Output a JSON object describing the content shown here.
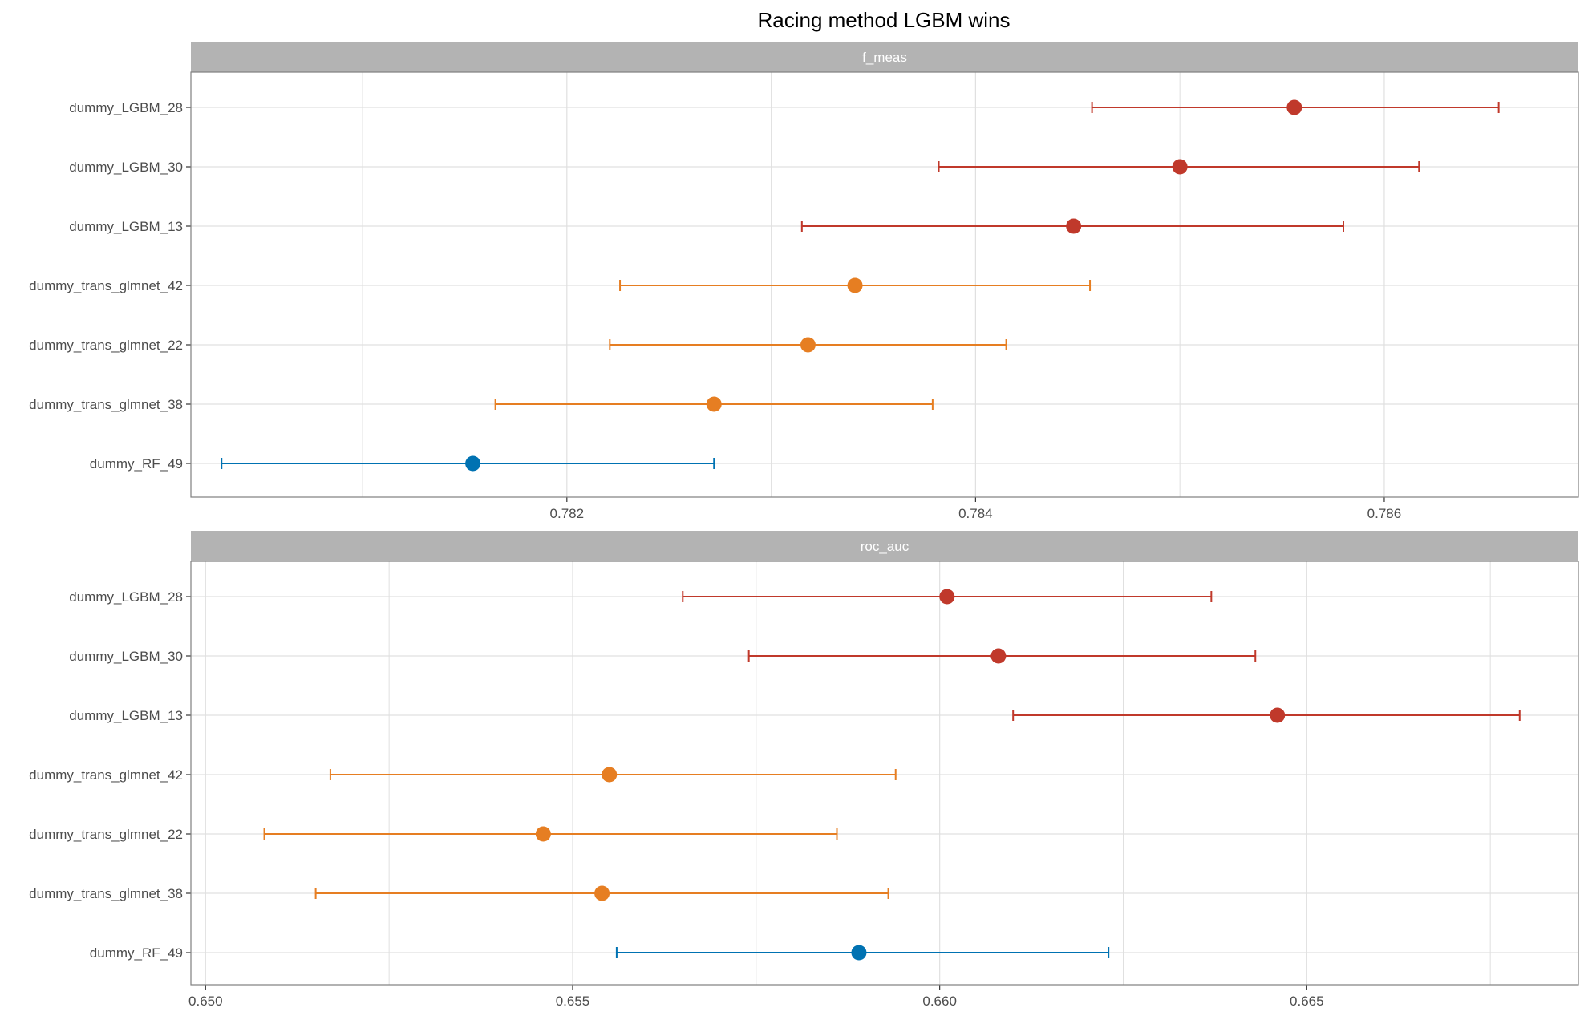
{
  "title": "Racing method LGBM wins",
  "colors": {
    "LGBM": "#C0392B",
    "glmnet": "#E67E22",
    "RF": "#0072B2",
    "strip_bg": "#B3B3B3",
    "strip_text": "#FFFFFF",
    "grid": "#E0E0E0",
    "panel_border": "#7F7F7F",
    "axis_text": "#4D4D4D"
  },
  "chart_data": [
    {
      "type": "scatter",
      "panel": "f_meas",
      "categories": [
        "dummy_LGBM_28",
        "dummy_LGBM_30",
        "dummy_LGBM_13",
        "dummy_trans_glmnet_42",
        "dummy_trans_glmnet_22",
        "dummy_trans_glmnet_38",
        "dummy_RF_49"
      ],
      "groups": [
        "LGBM",
        "LGBM",
        "LGBM",
        "glmnet",
        "glmnet",
        "glmnet",
        "RF"
      ],
      "mean": [
        0.78556,
        0.785,
        0.78448,
        0.78341,
        0.78318,
        0.78272,
        0.78154
      ],
      "lower": [
        0.78457,
        0.78382,
        0.78315,
        0.78226,
        0.78221,
        0.78165,
        0.78031
      ],
      "upper": [
        0.78656,
        0.78617,
        0.7858,
        0.78456,
        0.78415,
        0.78379,
        0.78272
      ],
      "xlim": [
        0.78016,
        0.78695
      ],
      "xticks": [
        0.782,
        0.784,
        0.786
      ],
      "xtick_labels": [
        "0.782",
        "0.784",
        "0.786"
      ],
      "grid": true
    },
    {
      "type": "scatter",
      "panel": "roc_auc",
      "categories": [
        "dummy_LGBM_28",
        "dummy_LGBM_30",
        "dummy_LGBM_13",
        "dummy_trans_glmnet_42",
        "dummy_trans_glmnet_22",
        "dummy_trans_glmnet_38",
        "dummy_RF_49"
      ],
      "groups": [
        "LGBM",
        "LGBM",
        "LGBM",
        "glmnet",
        "glmnet",
        "glmnet",
        "RF"
      ],
      "mean": [
        0.6601,
        0.6608,
        0.6646,
        0.6555,
        0.6546,
        0.6554,
        0.6589
      ],
      "lower": [
        0.6565,
        0.6574,
        0.661,
        0.6517,
        0.6508,
        0.6515,
        0.6556
      ],
      "upper": [
        0.6637,
        0.6643,
        0.6679,
        0.6594,
        0.6586,
        0.6593,
        0.6623
      ],
      "xlim": [
        0.6498,
        0.6687
      ],
      "xticks": [
        0.65,
        0.655,
        0.66,
        0.665
      ],
      "xtick_labels": [
        "0.650",
        "0.655",
        "0.660",
        "0.665"
      ],
      "grid": true
    }
  ]
}
